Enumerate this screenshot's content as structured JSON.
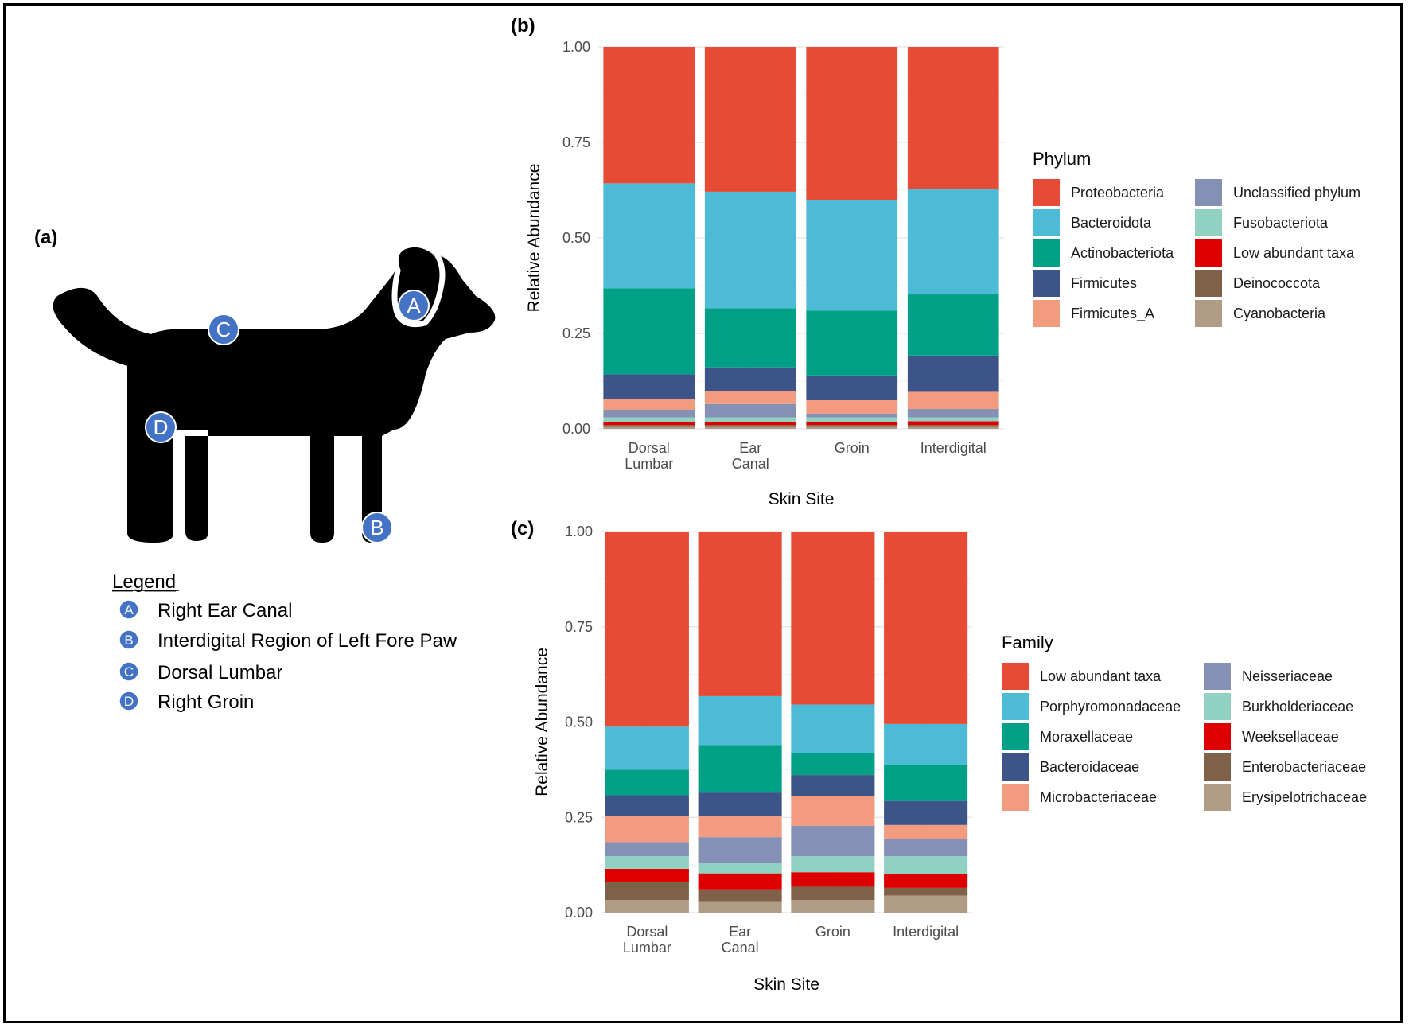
{
  "panels": {
    "a_label": "(a)",
    "b_label": "(b)",
    "c_label": "(c)"
  },
  "dog": {
    "badges": [
      "A",
      "B",
      "C",
      "D"
    ],
    "legend_title": "Legend",
    "legend_items": [
      {
        "letter": "A",
        "label": "Right Ear Canal"
      },
      {
        "letter": "B",
        "label": "Interdigital Region of Left Fore Paw"
      },
      {
        "letter": "C",
        "label": "Dorsal Lumbar"
      },
      {
        "letter": "D",
        "label": "Right Groin"
      }
    ],
    "colors": {
      "silhouette": "#000000",
      "badge": "#4472c4",
      "badge_border": "#ffffff"
    }
  },
  "chart_data": [
    {
      "id": "phylum",
      "type": "bar",
      "stacked": true,
      "xlabel": "Skin Site",
      "ylabel": "Relative Abundance",
      "ylim": [
        0,
        1
      ],
      "yticks": [
        "0.00",
        "0.25",
        "0.50",
        "0.75",
        "1.00"
      ],
      "categories": [
        [
          "Dorsal",
          "Lumbar"
        ],
        [
          "Ear",
          "Canal"
        ],
        [
          "Groin"
        ],
        [
          "Interdigital"
        ]
      ],
      "legend_title": "Phylum",
      "series": [
        {
          "name": "Cyanobacteria",
          "color": "#b09c85",
          "values": [
            0.005,
            0.005,
            0.005,
            0.005
          ]
        },
        {
          "name": "Deinococcota",
          "color": "#7e6148",
          "values": [
            0.005,
            0.005,
            0.005,
            0.005
          ]
        },
        {
          "name": "Low abundant taxa",
          "color": "#dc0000",
          "values": [
            0.008,
            0.007,
            0.008,
            0.01
          ]
        },
        {
          "name": "Fusobacteriota",
          "color": "#91d1c2",
          "values": [
            0.012,
            0.013,
            0.012,
            0.01
          ]
        },
        {
          "name": "Unclassified phylum",
          "color": "#8491b4",
          "values": [
            0.02,
            0.035,
            0.01,
            0.022
          ]
        },
        {
          "name": "Firmicutes_A",
          "color": "#f39b7f",
          "values": [
            0.028,
            0.033,
            0.035,
            0.045
          ]
        },
        {
          "name": "Firmicutes",
          "color": "#3c5488",
          "values": [
            0.065,
            0.063,
            0.065,
            0.095
          ]
        },
        {
          "name": "Actinobacteriota",
          "color": "#00a087",
          "values": [
            0.225,
            0.155,
            0.17,
            0.16
          ]
        },
        {
          "name": "Bacteroidota",
          "color": "#4dbbd5",
          "values": [
            0.275,
            0.305,
            0.29,
            0.275
          ]
        },
        {
          "name": "Proteobacteria",
          "color": "#e64b35",
          "values": [
            0.357,
            0.379,
            0.4,
            0.373
          ]
        }
      ]
    },
    {
      "id": "family",
      "type": "bar",
      "stacked": true,
      "xlabel": "Skin Site",
      "ylabel": "Relative Abundance",
      "ylim": [
        0,
        1
      ],
      "yticks": [
        "0.00",
        "0.25",
        "0.50",
        "0.75",
        "1.00"
      ],
      "categories": [
        [
          "Dorsal",
          "Lumbar"
        ],
        [
          "Ear",
          "Canal"
        ],
        [
          "Groin"
        ],
        [
          "Interdigital"
        ]
      ],
      "legend_title": "Family",
      "series": [
        {
          "name": "Erysipelotrichaceae",
          "color": "#b09c85",
          "values": [
            0.033,
            0.028,
            0.033,
            0.045
          ]
        },
        {
          "name": "Enterobacteriaceae",
          "color": "#7e6148",
          "values": [
            0.047,
            0.033,
            0.035,
            0.02
          ]
        },
        {
          "name": "Weeksellaceae",
          "color": "#dc0000",
          "values": [
            0.035,
            0.042,
            0.038,
            0.037
          ]
        },
        {
          "name": "Burkholderiaceae",
          "color": "#91d1c2",
          "values": [
            0.033,
            0.027,
            0.042,
            0.046
          ]
        },
        {
          "name": "Neisseriaceae",
          "color": "#8491b4",
          "values": [
            0.037,
            0.068,
            0.08,
            0.045
          ]
        },
        {
          "name": "Microbacteriaceae",
          "color": "#f39b7f",
          "values": [
            0.068,
            0.055,
            0.078,
            0.037
          ]
        },
        {
          "name": "Bacteroidaceae",
          "color": "#3c5488",
          "values": [
            0.055,
            0.062,
            0.055,
            0.063
          ]
        },
        {
          "name": "Moraxellaceae",
          "color": "#00a087",
          "values": [
            0.067,
            0.125,
            0.058,
            0.095
          ]
        },
        {
          "name": "Porphyromonadaceae",
          "color": "#4dbbd5",
          "values": [
            0.113,
            0.128,
            0.127,
            0.107
          ]
        },
        {
          "name": "Low abundant taxa",
          "color": "#e64b35",
          "values": [
            0.512,
            0.432,
            0.454,
            0.505
          ]
        }
      ]
    }
  ]
}
